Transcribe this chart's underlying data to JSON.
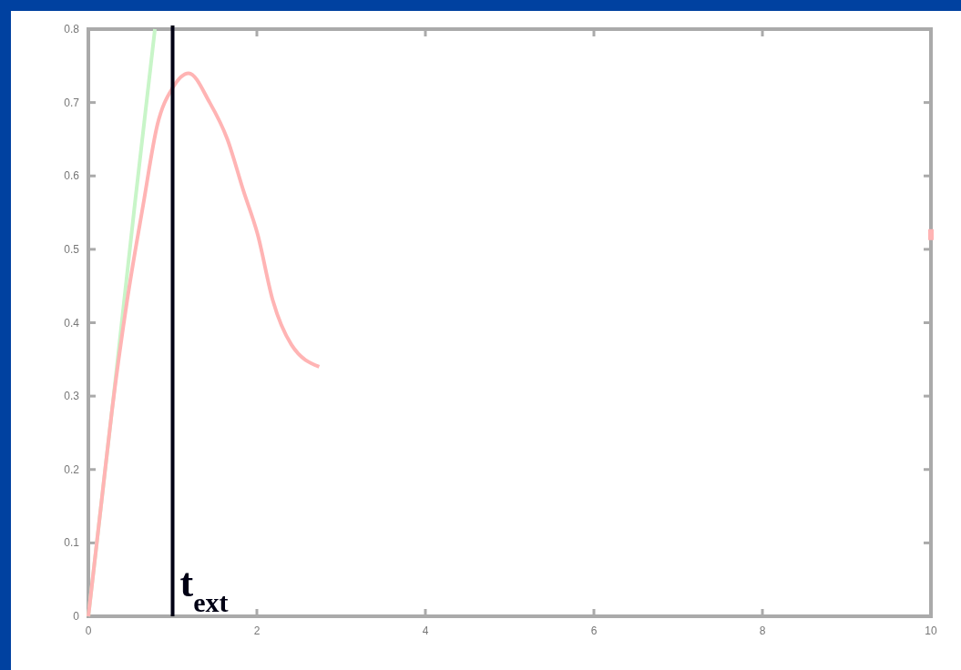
{
  "chart_data": {
    "type": "line",
    "xlim": [
      0,
      10
    ],
    "ylim": [
      0,
      0.8
    ],
    "xticks": [
      0,
      2,
      4,
      6,
      8,
      10
    ],
    "yticks": [
      0,
      0.1,
      0.2,
      0.3,
      0.4,
      0.5,
      0.6,
      0.7,
      0.8
    ],
    "grid": false,
    "marker": "none",
    "line_style": "solid",
    "series": [
      {
        "color": "#c8f5c8",
        "x": [
          0,
          0.3,
          0.55,
          0.79
        ],
        "values": [
          0,
          0.3,
          0.56,
          0.8
        ]
      },
      {
        "color": "#ffb4b4",
        "x": [
          0,
          0.15,
          0.28,
          0.46,
          0.65,
          0.82,
          1.0,
          1.19,
          1.44,
          1.65,
          1.84,
          2.01,
          2.19,
          2.41,
          2.74
        ],
        "values": [
          0,
          0.15,
          0.28,
          0.43,
          0.56,
          0.67,
          0.72,
          0.74,
          0.7,
          0.65,
          0.58,
          0.52,
          0.43,
          0.37,
          0.34
        ]
      },
      {
        "type": "scatter",
        "marker": "square",
        "color": "#ffb4b4",
        "x": [
          10
        ],
        "values": [
          0.52
        ]
      }
    ],
    "ref_lines": [
      {
        "axis": "x",
        "value": 1,
        "label": "t$_{ext}$",
        "color": "#000014",
        "line_style": "solid"
      }
    ]
  }
}
